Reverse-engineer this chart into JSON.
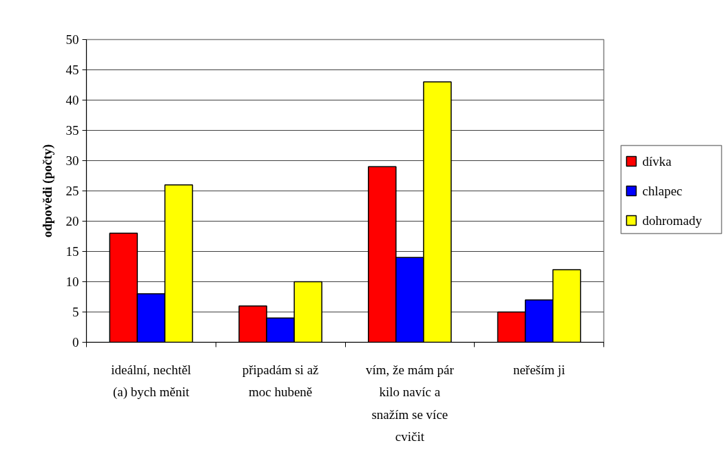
{
  "chart_data": {
    "type": "bar",
    "ylabel": "odpovědi (počty)",
    "categories": [
      "ideální, nechtěl (a) bych měnit",
      "připadám si až moc hubeně",
      "vím, že mám pár kilo navíc a snažím se více cvičit",
      "neřeším ji"
    ],
    "series": [
      {
        "name": "dívka",
        "color": "#ff0000",
        "values": [
          18,
          6,
          29,
          5
        ]
      },
      {
        "name": "chlapec",
        "color": "#0000ff",
        "values": [
          8,
          4,
          14,
          7
        ]
      },
      {
        "name": "dohromady",
        "color": "#ffff00",
        "values": [
          26,
          10,
          43,
          12
        ]
      }
    ],
    "ylim": [
      0,
      50
    ],
    "yticks": [
      0,
      5,
      10,
      15,
      20,
      25,
      30,
      35,
      40,
      45,
      50
    ],
    "grid": "y",
    "legend": "right"
  }
}
